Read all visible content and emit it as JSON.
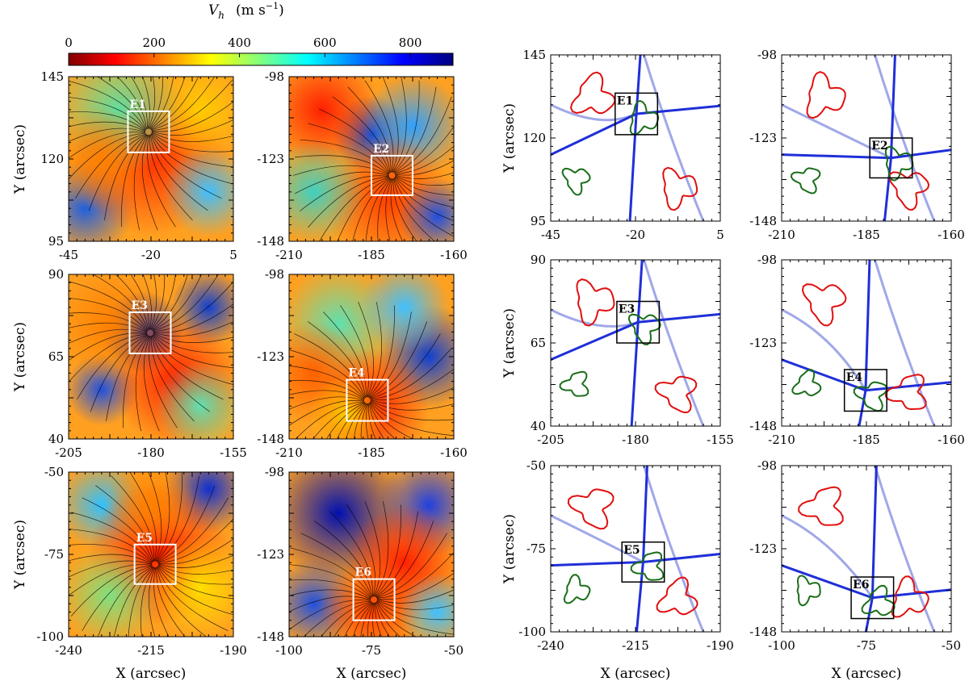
{
  "colorbar": {
    "label": "V",
    "label_sub": "h",
    "label_unit": "(m s",
    "label_exp": "−1",
    "label_close": ")",
    "ticks": [
      "0",
      "200",
      "400",
      "600",
      "800"
    ],
    "range": [
      0,
      900
    ]
  },
  "axis_labels": {
    "x": "X (arcsec)",
    "y": "Y (arcsec)"
  },
  "rows": [
    {
      "y_ticks": [
        [
          "145",
          "120",
          "95"
        ],
        [
          "-98",
          "-123",
          "-148"
        ]
      ],
      "x_ticks": [
        [
          "-45",
          "-20",
          "5"
        ],
        [
          "-210",
          "-185",
          "-160"
        ]
      ],
      "events": [
        "E1",
        "E2"
      ]
    },
    {
      "y_ticks": [
        [
          "90",
          "65",
          "40"
        ],
        [
          "-98",
          "-123",
          "-148"
        ]
      ],
      "x_ticks": [
        [
          "-205",
          "-180",
          "-155"
        ],
        [
          "-210",
          "-185",
          "-160"
        ]
      ],
      "events": [
        "E3",
        "E4"
      ]
    },
    {
      "y_ticks": [
        [
          "-50",
          "-75",
          "-100"
        ],
        [
          "-98",
          "-123",
          "-148"
        ]
      ],
      "x_ticks": [
        [
          "-240",
          "-215",
          "-190"
        ],
        [
          "-100",
          "-75",
          "-50"
        ]
      ],
      "events": [
        "E5",
        "E6"
      ]
    }
  ],
  "colors": {
    "positive_contour": "#e01010",
    "negative_contour": "#1a6e1a",
    "lane_main": "#1f2fd8",
    "lane_faint": "#a0a8e8",
    "event_box_left": "#ffffff",
    "event_box_right": "#000000"
  }
}
